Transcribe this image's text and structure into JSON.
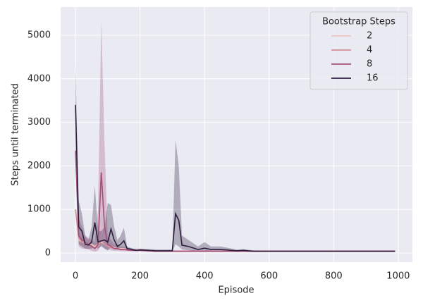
{
  "chart_data": {
    "type": "line",
    "xlabel": "Episode",
    "ylabel": "Steps until terminated",
    "x": [
      0,
      10,
      20,
      30,
      40,
      50,
      60,
      70,
      80,
      90,
      100,
      110,
      120,
      130,
      140,
      150,
      160,
      170,
      180,
      190,
      200,
      250,
      300,
      310,
      320,
      330,
      350,
      380,
      400,
      420,
      450,
      500,
      520,
      550,
      600,
      700,
      800,
      900,
      990
    ],
    "series": [
      {
        "name": "2",
        "color": "#eec4c1",
        "values": [
          1000,
          300,
          250,
          250,
          200,
          200,
          150,
          200,
          250,
          200,
          150,
          150,
          120,
          100,
          100,
          100,
          80,
          80,
          70,
          70,
          70,
          40,
          40,
          40,
          40,
          40,
          40,
          40,
          40,
          40,
          40,
          40,
          40,
          40,
          40,
          40,
          40,
          40,
          40
        ]
      },
      {
        "name": "4",
        "color": "#d28e97",
        "values": [
          1000,
          350,
          250,
          200,
          180,
          150,
          120,
          150,
          300,
          200,
          150,
          120,
          100,
          90,
          80,
          80,
          70,
          60,
          60,
          60,
          60,
          40,
          40,
          40,
          40,
          40,
          40,
          40,
          40,
          40,
          40,
          40,
          40,
          40,
          40,
          40,
          40,
          40,
          40
        ]
      },
      {
        "name": "8",
        "color": "#a54e7a",
        "values": [
          2350,
          400,
          300,
          250,
          200,
          150,
          100,
          200,
          1850,
          600,
          200,
          150,
          100,
          100,
          80,
          80,
          70,
          60,
          60,
          60,
          60,
          40,
          40,
          40,
          40,
          40,
          40,
          40,
          40,
          40,
          40,
          40,
          40,
          40,
          40,
          40,
          40,
          40,
          40
        ],
        "upper": [
          2450,
          800,
          600,
          400,
          350,
          300,
          250,
          1000,
          5350,
          2500,
          400,
          300,
          200,
          200,
          150,
          150,
          120,
          100,
          100,
          100,
          100,
          60,
          60,
          60,
          60,
          60,
          60,
          60,
          60,
          60,
          60,
          60,
          60,
          60,
          60,
          60,
          60,
          60,
          60
        ],
        "lower": [
          2250,
          150,
          100,
          100,
          80,
          50,
          30,
          50,
          200,
          100,
          80,
          60,
          50,
          50,
          40,
          40,
          40,
          40,
          40,
          40,
          40,
          25,
          25,
          25,
          25,
          25,
          25,
          25,
          25,
          25,
          25,
          25,
          25,
          25,
          25,
          25,
          25,
          25,
          25
        ]
      },
      {
        "name": "16",
        "color": "#2d1e3e",
        "values": [
          3400,
          600,
          500,
          200,
          180,
          250,
          700,
          250,
          280,
          300,
          250,
          550,
          300,
          150,
          200,
          280,
          100,
          90,
          70,
          60,
          70,
          50,
          50,
          900,
          750,
          180,
          150,
          80,
          110,
          80,
          80,
          50,
          60,
          40,
          40,
          40,
          40,
          40,
          40
        ],
        "upper": [
          4300,
          1200,
          900,
          400,
          300,
          600,
          1550,
          500,
          500,
          600,
          1150,
          1100,
          600,
          300,
          400,
          580,
          150,
          120,
          100,
          90,
          100,
          80,
          80,
          2600,
          2000,
          400,
          300,
          150,
          250,
          150,
          150,
          80,
          90,
          60,
          50,
          50,
          50,
          50,
          50
        ],
        "lower": [
          2500,
          200,
          150,
          100,
          100,
          100,
          150,
          100,
          150,
          100,
          50,
          150,
          100,
          80,
          80,
          80,
          60,
          60,
          50,
          40,
          50,
          30,
          30,
          200,
          150,
          80,
          60,
          40,
          50,
          40,
          40,
          30,
          30,
          30,
          30,
          30,
          30,
          30,
          30
        ]
      }
    ],
    "legend_title": "Bootstrap Steps",
    "legend": "upper right",
    "xlim": [
      -46,
      1044
    ],
    "ylim": [
      -210,
      5647
    ],
    "xticks": [
      0,
      200,
      400,
      600,
      800,
      1000
    ],
    "yticks": [
      0,
      1000,
      2000,
      3000,
      4000,
      5000
    ],
    "grid": true
  }
}
